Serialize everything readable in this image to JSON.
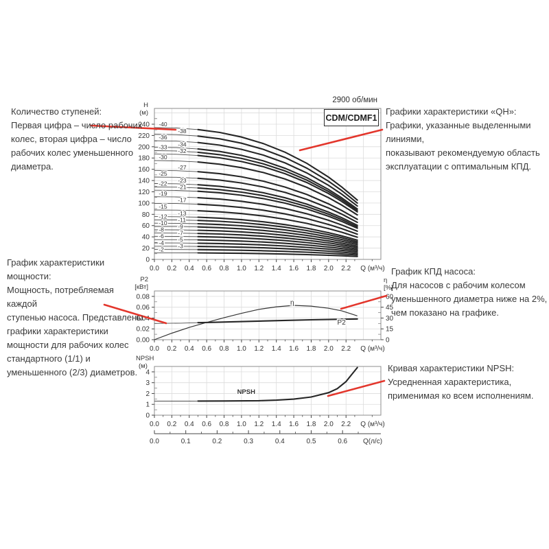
{
  "header": {
    "rpm": "2900 об/мин",
    "model": "CDM/CDMF1"
  },
  "annotations": {
    "stages": {
      "title": "Количество ступеней:",
      "body": "Первая цифра – число рабочих\nколес, вторая цифра – число\nрабочих колес уменьшенного\nдиаметра."
    },
    "qh": {
      "title": "Графики характеристики «QH»:",
      "body": "Графики, указанные выделенными линиями,\nпоказывают рекомендуемую область\nэксплуатации с оптимальным КПД."
    },
    "power": {
      "title": "График характеристики мощности:",
      "body": "Мощность, потребляемая каждой\nступенью насоса. Представлены\nграфики характеристики\nмощности для рабочих колес\nстандартного (1/1) и\nуменьшенного (2/3) диаметров."
    },
    "eff": {
      "title": "График КПД насоса:",
      "body": "Для насосов с рабочим колесом\nуменьшенного диаметра ниже на 2%,\nчем показано на графике."
    },
    "npsh": {
      "title": "Кривая характеристики NPSH:",
      "body": "Усредненная характеристика,\nприменимая ко всем исполнениям."
    }
  },
  "colors": {
    "accent_red": "#e3362c",
    "curve_bold": "#262626",
    "curve_thin": "#4a4a4a",
    "grid": "#dcdcdc",
    "axis": "#8c8c8c",
    "tick": "#444444",
    "text": "#333333"
  },
  "arrows": [
    {
      "name": "stages-pointer",
      "from": [
        133,
        183
      ],
      "to": [
        256,
        189
      ]
    },
    {
      "name": "qh-pointer",
      "from": [
        557,
        189
      ],
      "to": [
        437,
        219
      ]
    },
    {
      "name": "power-pointer",
      "from": [
        152,
        444
      ],
      "to": [
        242,
        471
      ]
    },
    {
      "name": "eff-pointer",
      "from": [
        563,
        431
      ],
      "to": [
        497,
        450
      ]
    },
    {
      "name": "npsh-pointer",
      "from": [
        560,
        555
      ],
      "to": [
        478,
        577
      ]
    }
  ],
  "chart_data": [
    {
      "id": "qh",
      "type": "line",
      "title": "CDM/CDMF1",
      "speed": "2900 об/мин",
      "xlabel": "Q (м³/ч)",
      "ylabel": "H",
      "ylabel_unit": "(м)",
      "xlim": [
        0,
        2.6
      ],
      "ylim": [
        0,
        268
      ],
      "xticks": [
        "0.0",
        "0.2",
        "0.4",
        "0.6",
        "0.8",
        "1.0",
        "1.2",
        "1.4",
        "1.6",
        "1.8",
        "2.0",
        "2.2"
      ],
      "yticks": [
        0,
        20,
        40,
        60,
        80,
        100,
        120,
        140,
        160,
        180,
        200,
        220,
        240
      ],
      "q_max": 2.33,
      "bold_from": 0.5,
      "head_profile": [
        [
          0,
          1
        ],
        [
          0.25,
          0.997
        ],
        [
          0.5,
          0.985
        ],
        [
          0.75,
          0.963
        ],
        [
          1,
          0.928
        ],
        [
          1.25,
          0.879
        ],
        [
          1.5,
          0.813
        ],
        [
          1.75,
          0.729
        ],
        [
          2,
          0.624
        ],
        [
          2.15,
          0.55
        ],
        [
          2.33,
          0.45
        ]
      ],
      "curves": [
        {
          "label": "-40",
          "h0": 234.0,
          "side": "left"
        },
        {
          "label": "-38",
          "h0": 222.3,
          "side": "right"
        },
        {
          "label": "-36",
          "h0": 210.6,
          "side": "left"
        },
        {
          "label": "-34",
          "h0": 199.0,
          "side": "right"
        },
        {
          "label": "-33",
          "h0": 193.1,
          "side": "left"
        },
        {
          "label": "-32",
          "h0": 187.2,
          "side": "right"
        },
        {
          "label": "-30",
          "h0": 175.5,
          "side": "left"
        },
        {
          "label": "-27",
          "h0": 158.0,
          "side": "right"
        },
        {
          "label": "-25",
          "h0": 146.2,
          "side": "left"
        },
        {
          "label": "-23",
          "h0": 134.6,
          "side": "right"
        },
        {
          "label": "-22",
          "h0": 128.7,
          "side": "left"
        },
        {
          "label": "-21",
          "h0": 122.8,
          "side": "right"
        },
        {
          "label": "-19",
          "h0": 111.2,
          "side": "left"
        },
        {
          "label": "-17",
          "h0": 99.4,
          "side": "right"
        },
        {
          "label": "-15",
          "h0": 87.7,
          "side": "left"
        },
        {
          "label": "-13",
          "h0": 76.0,
          "side": "right"
        },
        {
          "label": "-12",
          "h0": 70.2,
          "side": "left"
        },
        {
          "label": "-11",
          "h0": 64.3,
          "side": "right"
        },
        {
          "label": "-10",
          "h0": 58.5,
          "side": "left"
        },
        {
          "label": "-9",
          "h0": 52.6,
          "side": "right"
        },
        {
          "label": "-8",
          "h0": 46.8,
          "side": "left"
        },
        {
          "label": "-7",
          "h0": 41.0,
          "side": "right"
        },
        {
          "label": "-6",
          "h0": 35.1,
          "side": "left"
        },
        {
          "label": "-5",
          "h0": 29.2,
          "side": "right"
        },
        {
          "label": "-4",
          "h0": 23.4,
          "side": "left"
        },
        {
          "label": "-3",
          "h0": 17.5,
          "side": "right"
        },
        {
          "label": "-2",
          "h0": 11.7,
          "side": "left"
        }
      ]
    },
    {
      "id": "power",
      "type": "line",
      "ylabel": "P2",
      "ylabel_unit": "[кВт]",
      "ylabel_right": "η",
      "ylabel_right_unit": "[%]",
      "xlabel": "Q (м³/ч)",
      "ylim": [
        0,
        0.09
      ],
      "ylim_right": [
        0,
        67.5
      ],
      "yticks": [
        "0.00",
        "0.02",
        "0.04",
        "0.06",
        "0.08"
      ],
      "yticks_right": [
        0,
        15,
        30,
        45,
        60
      ],
      "xticks": [
        "0.0",
        "0.2",
        "0.4",
        "0.6",
        "0.8",
        "1.0",
        "1.2",
        "1.4",
        "1.6",
        "1.8",
        "2.0",
        "2.2"
      ],
      "bold_from": 0.5,
      "series": [
        {
          "name": "P2",
          "axis": "left",
          "bold": true,
          "points": [
            [
              0,
              0.03
            ],
            [
              0.3,
              0.0306
            ],
            [
              0.6,
              0.0318
            ],
            [
              0.9,
              0.0331
            ],
            [
              1.2,
              0.0344
            ],
            [
              1.5,
              0.0356
            ],
            [
              1.8,
              0.0367
            ],
            [
              2.1,
              0.0377
            ],
            [
              2.33,
              0.0383
            ]
          ],
          "label": {
            "text": "P2",
            "q": 2.1,
            "v": 0.0318
          }
        },
        {
          "name": "η",
          "axis": "right",
          "bold": false,
          "points": [
            [
              0,
              0
            ],
            [
              0.2,
              9
            ],
            [
              0.4,
              17
            ],
            [
              0.6,
              24
            ],
            [
              0.8,
              30.5
            ],
            [
              1.0,
              36.5
            ],
            [
              1.2,
              42
            ],
            [
              1.4,
              45.5
            ],
            [
              1.6,
              47.5
            ],
            [
              1.8,
              46.5
            ],
            [
              2.0,
              43.5
            ],
            [
              2.15,
              40
            ],
            [
              2.33,
              33
            ]
          ],
          "label": {
            "text": "η",
            "q": 1.56,
            "v": 51.5
          }
        }
      ]
    },
    {
      "id": "npsh",
      "type": "line",
      "ylabel": "NPSH",
      "ylabel_unit": "(м)",
      "xlabel": "Q (м³/ч)",
      "xlabel2": "Q(л/с)",
      "ylim": [
        0,
        4.5
      ],
      "yticks": [
        0,
        1,
        2,
        3,
        4
      ],
      "xticks": [
        "0.0",
        "0.2",
        "0.4",
        "0.6",
        "0.8",
        "1.0",
        "1.2",
        "1.4",
        "1.6",
        "1.8",
        "2.0",
        "2.2"
      ],
      "xticks2": [
        "0.0",
        "0.1",
        "0.2",
        "0.3",
        "0.4",
        "0.5",
        "0.6"
      ],
      "lps_to_m3h": 3.6,
      "bold_from": 0.5,
      "curve": [
        [
          0,
          1.3
        ],
        [
          0.4,
          1.3
        ],
        [
          0.8,
          1.31
        ],
        [
          1.2,
          1.34
        ],
        [
          1.4,
          1.39
        ],
        [
          1.6,
          1.48
        ],
        [
          1.8,
          1.68
        ],
        [
          2.0,
          2.08
        ],
        [
          2.1,
          2.45
        ],
        [
          2.2,
          3.1
        ],
        [
          2.26,
          3.7
        ],
        [
          2.33,
          4.4
        ]
      ],
      "label": {
        "text": "NPSH",
        "q": 0.95,
        "v": 1.78
      }
    }
  ]
}
